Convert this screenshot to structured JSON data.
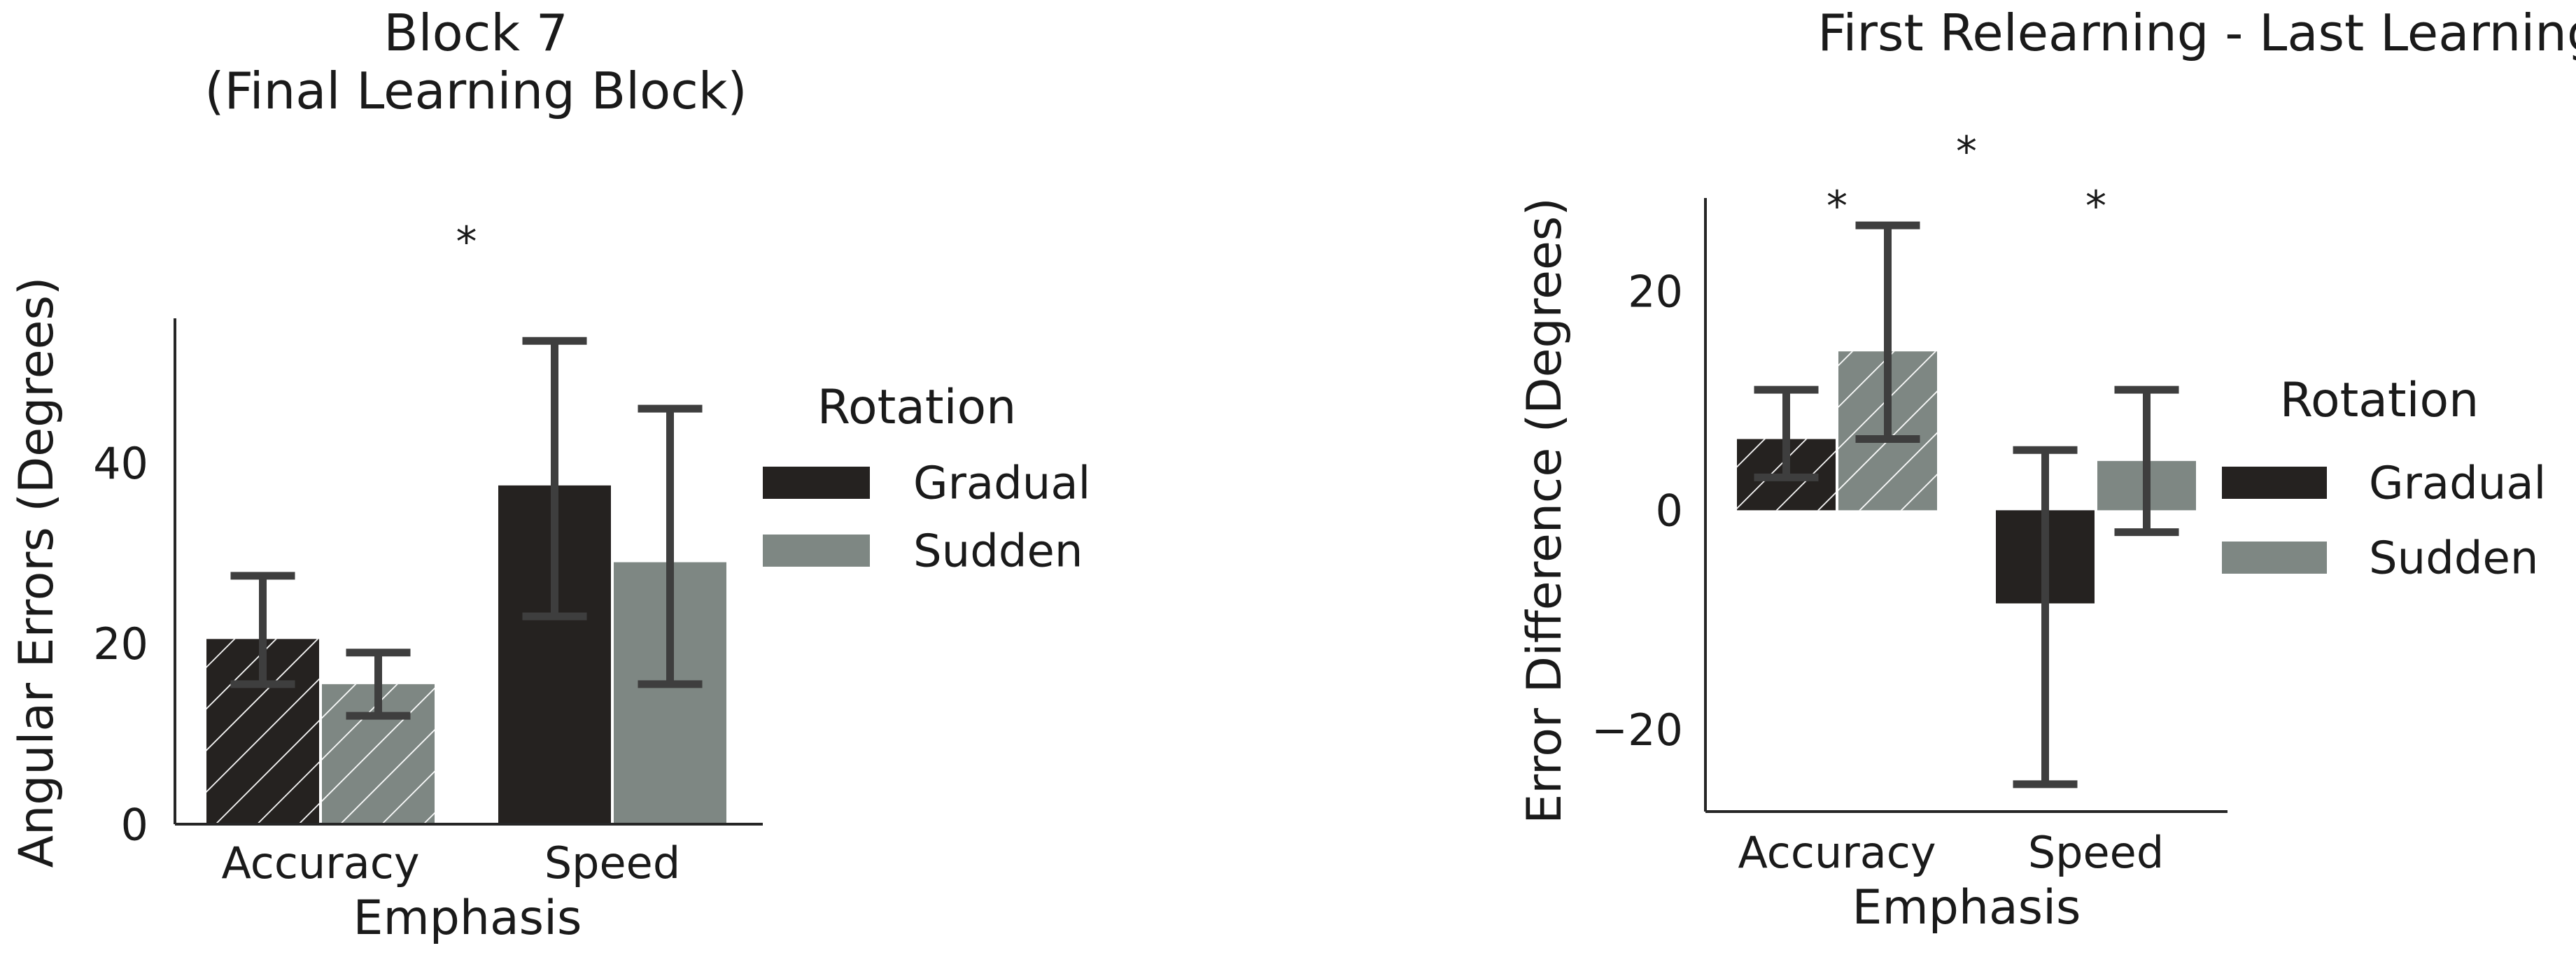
{
  "chart_data": [
    {
      "type": "bar",
      "title": "Block 7\n(Final Learning Block)",
      "xlabel": "Emphasis",
      "ylabel": "Angular Errors (Degrees)",
      "categories": [
        "Accuracy",
        "Speed"
      ],
      "ylim": [
        0,
        56
      ],
      "yticks": [
        0,
        20,
        40
      ],
      "series": [
        {
          "name": "Gradual",
          "values": [
            20.5,
            37.5
          ],
          "err_low": [
            15.5,
            23
          ],
          "err_high": [
            27.5,
            53.5
          ],
          "color": "#252220"
        },
        {
          "name": "Sudden",
          "values": [
            15.5,
            29.0
          ],
          "err_low": [
            12.0,
            15.5
          ],
          "err_high": [
            19.0,
            46.0
          ],
          "color": "#7e8783"
        }
      ],
      "hatched_category": "Accuracy",
      "annotations": [
        {
          "text": "*",
          "x": 0.5,
          "y": 66
        }
      ],
      "legend": {
        "title": "Rotation",
        "entries": [
          "Gradual",
          "Sudden"
        ],
        "placement": "right"
      },
      "grid": false
    },
    {
      "type": "bar",
      "title": "First Relearning - Last Learning Blocks",
      "xlabel": "Emphasis",
      "ylabel": "Error Difference (Degrees)",
      "categories": [
        "Accuracy",
        "Speed"
      ],
      "ylim": [
        -27.5,
        28.5
      ],
      "yticks": [
        -20,
        0,
        20
      ],
      "series": [
        {
          "name": "Gradual",
          "values": [
            6.5,
            -8.5
          ],
          "err_low": [
            3.0,
            -25.0
          ],
          "err_high": [
            11.0,
            5.5
          ],
          "color": "#252220"
        },
        {
          "name": "Sudden",
          "values": [
            14.5,
            4.5
          ],
          "err_low": [
            6.5,
            -2.0
          ],
          "err_high": [
            26.0,
            11.0
          ],
          "color": "#7e8783"
        }
      ],
      "hatched_category": "Accuracy",
      "annotations": [
        {
          "text": "*",
          "x": 0,
          "y": 29
        },
        {
          "text": "*",
          "x": 0.5,
          "y": 34
        },
        {
          "text": "*",
          "x": 1,
          "y": 29
        }
      ],
      "legend": {
        "title": "Rotation",
        "entries": [
          "Gradual",
          "Sudden"
        ],
        "placement": "right"
      },
      "grid": false
    }
  ]
}
